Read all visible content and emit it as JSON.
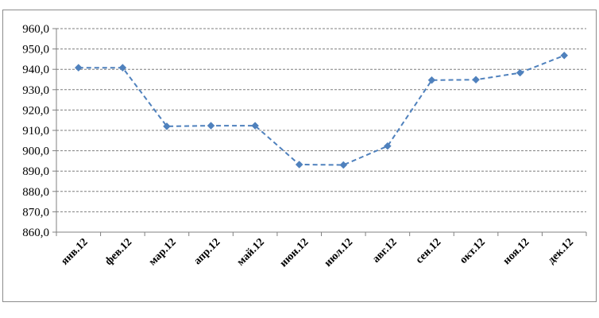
{
  "chart_data": {
    "type": "line",
    "title": "",
    "xlabel": "",
    "ylabel": "",
    "categories": [
      "янв.12",
      "фев.12",
      "мар.12",
      "апр.12",
      "май.12",
      "июн.12",
      "июл.12",
      "авг.12",
      "сен.12",
      "окт.12",
      "ноя.12",
      "дек.12"
    ],
    "series": [
      {
        "values": [
          940.8,
          940.8,
          912.0,
          912.3,
          912.3,
          893.2,
          893.0,
          902.3,
          934.7,
          934.9,
          938.3,
          946.8
        ],
        "color": "#4f81bd",
        "line_style": "dashed",
        "marker": "diamond"
      }
    ],
    "ylim": [
      860,
      960
    ],
    "yticks": [
      "860,0",
      "870,0",
      "880,0",
      "890,0",
      "900,0",
      "910,0",
      "920,0",
      "930,0",
      "940,0",
      "950,0",
      "960,0"
    ],
    "grid": true,
    "grid_style": "dashed",
    "legend": "none"
  }
}
